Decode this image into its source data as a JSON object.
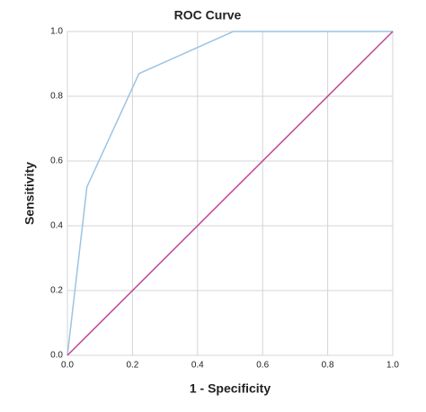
{
  "chart_data": {
    "type": "line",
    "title": "ROC Curve",
    "xlabel": "1 - Specificity",
    "ylabel": "Sensitivity",
    "series": [
      {
        "color": "#9cc3e2",
        "x": [
          0,
          0.06,
          0.22,
          0.51,
          1.0
        ],
        "values": [
          0,
          0.52,
          0.87,
          1.0,
          1.0
        ]
      },
      {
        "color": "#c2449a",
        "x": [
          0,
          1.0
        ],
        "values": [
          0,
          1.0
        ]
      }
    ],
    "xlim": [
      0,
      1.0
    ],
    "ylim": [
      0,
      1.0
    ],
    "xticks": [
      {
        "value": 0,
        "label": "0.0"
      },
      0.2,
      0.4,
      0.6,
      0.8,
      {
        "value": 1.0,
        "label": "1.0"
      }
    ],
    "yticks": [
      {
        "value": 0,
        "label": "0.0"
      },
      0.2,
      0.4,
      0.6,
      0.8,
      {
        "value": 1.0,
        "label": "1.0"
      }
    ],
    "grid": true
  }
}
